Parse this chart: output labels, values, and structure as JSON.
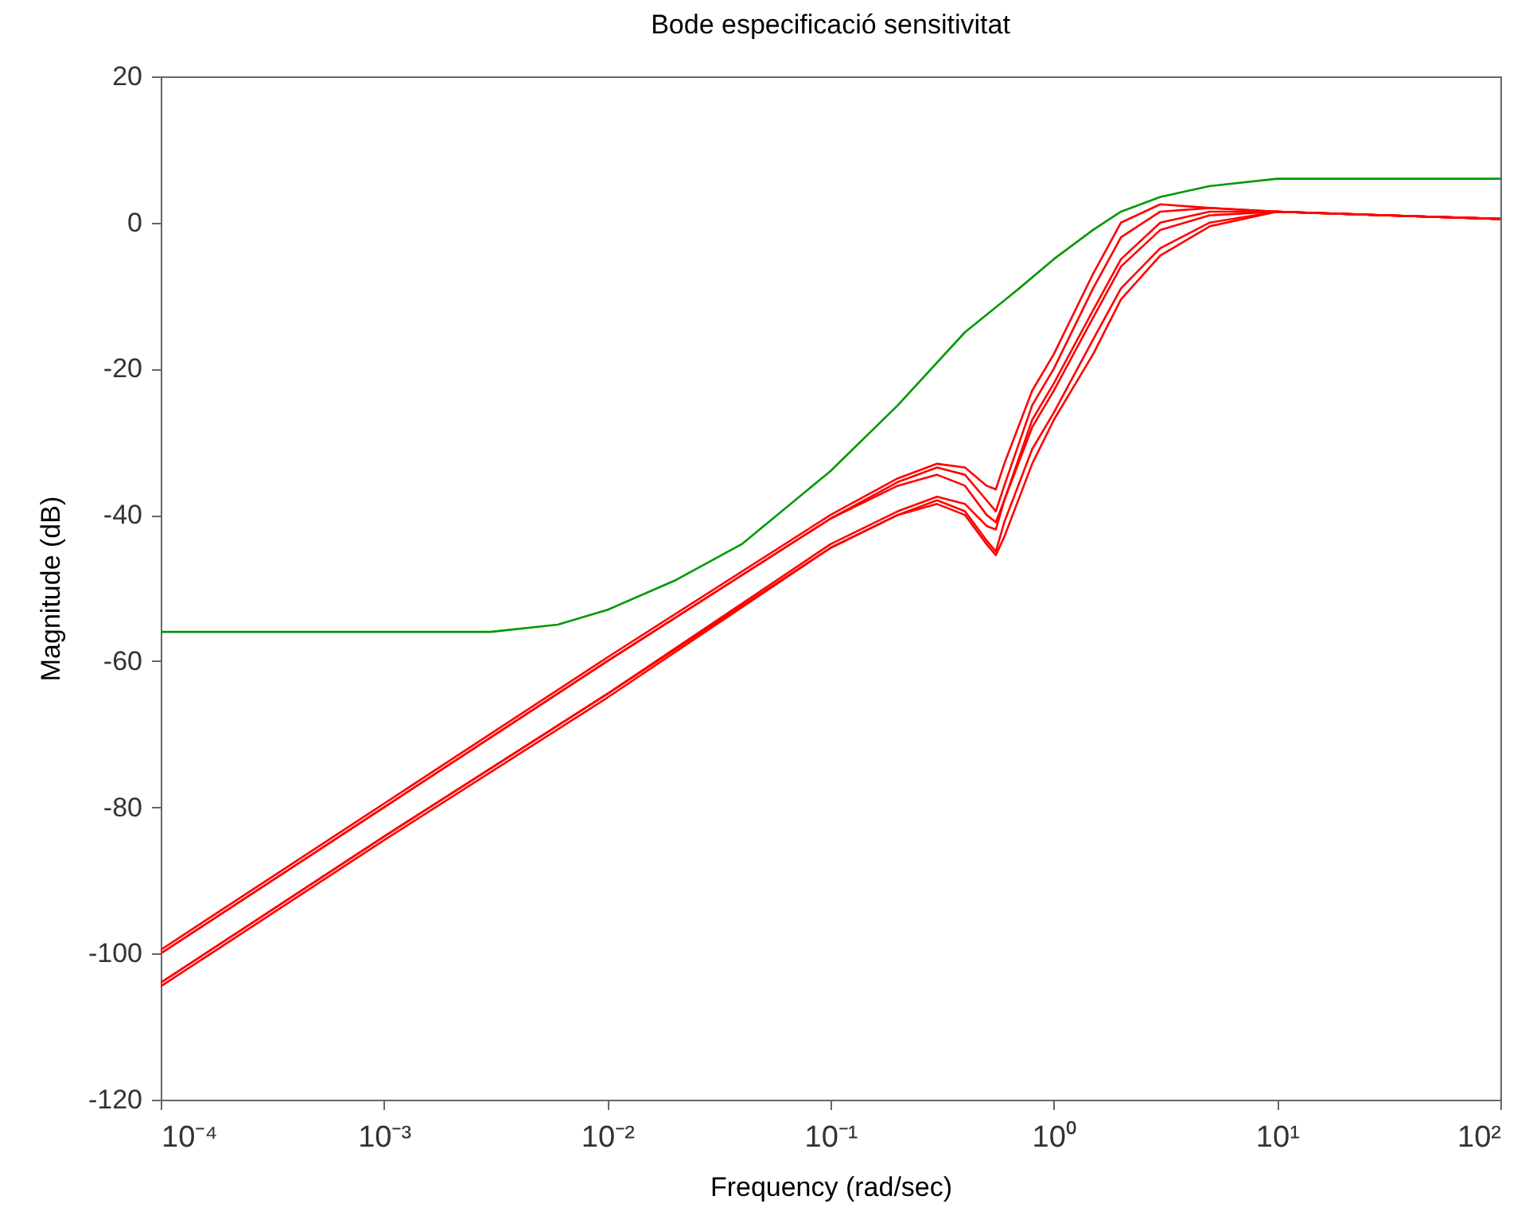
{
  "chart_data": {
    "type": "line",
    "title": "Bode especificació sensitivitat",
    "xlabel": "Frequency  (rad/sec)",
    "ylabel": "Magnitude (dB)",
    "log": "x",
    "grid": false,
    "legend": false,
    "marker": "none",
    "line_style": "solid",
    "xlim": [
      0.0001,
      100
    ],
    "ylim": [
      -120,
      20
    ],
    "xticks": [
      {
        "value": 0.0001,
        "label": "10⁻⁴"
      },
      {
        "value": 0.001,
        "label": "10⁻³"
      },
      {
        "value": 0.01,
        "label": "10⁻²"
      },
      {
        "value": 0.1,
        "label": "10⁻¹"
      },
      {
        "value": 1,
        "label": "10⁰"
      },
      {
        "value": 10,
        "label": "10¹"
      },
      {
        "value": 100,
        "label": "10²"
      }
    ],
    "yticks": [
      -120,
      -100,
      -80,
      -60,
      -40,
      -20,
      0,
      20
    ],
    "series": [
      {
        "color": "#009900",
        "x": [
          0.0001,
          0.001,
          0.003,
          0.006,
          0.01,
          0.02,
          0.04,
          0.1,
          0.2,
          0.4,
          0.7,
          1,
          1.5,
          2,
          3,
          5,
          10,
          30,
          100
        ],
        "values": [
          -56,
          -56,
          -56,
          -55,
          -53,
          -49,
          -44,
          -34,
          -25,
          -15,
          -9,
          -5,
          -1,
          1.5,
          3.5,
          5,
          6,
          6,
          6
        ]
      },
      {
        "color": "#ff0000",
        "x": [
          0.0001,
          0.001,
          0.01,
          0.1,
          0.2,
          0.3,
          0.4,
          0.5,
          0.55,
          0.6,
          0.8,
          1,
          1.5,
          2,
          3,
          5,
          10,
          30,
          100
        ],
        "values": [
          -99.5,
          -79.5,
          -59.5,
          -40,
          -35,
          -33,
          -33.5,
          -36,
          -36.5,
          -33,
          -23,
          -18,
          -7,
          0,
          2.5,
          2,
          1.5,
          1,
          0.5
        ]
      },
      {
        "color": "#ff0000",
        "x": [
          0.0001,
          0.001,
          0.01,
          0.1,
          0.2,
          0.3,
          0.4,
          0.5,
          0.55,
          0.6,
          0.8,
          1,
          1.5,
          2,
          3,
          5,
          10,
          30,
          100
        ],
        "values": [
          -100,
          -80,
          -60,
          -40.5,
          -35.5,
          -33.5,
          -34.5,
          -38,
          -39.5,
          -36,
          -25,
          -20,
          -9,
          -2,
          1.5,
          2,
          1.5,
          1,
          0.5
        ]
      },
      {
        "color": "#ff0000",
        "x": [
          0.0001,
          0.001,
          0.01,
          0.1,
          0.2,
          0.3,
          0.4,
          0.5,
          0.55,
          0.6,
          0.8,
          1,
          1.5,
          2,
          3,
          5,
          10,
          30,
          100
        ],
        "values": [
          -100,
          -80,
          -60,
          -40.5,
          -36,
          -34.5,
          -36,
          -40,
          -41,
          -38,
          -27,
          -22,
          -12,
          -5,
          0,
          1.5,
          1.5,
          1,
          0.5
        ]
      },
      {
        "color": "#ff0000",
        "x": [
          0.0001,
          0.001,
          0.01,
          0.1,
          0.2,
          0.3,
          0.4,
          0.5,
          0.55,
          0.6,
          0.8,
          1,
          1.5,
          2,
          3,
          5,
          10,
          30,
          100
        ],
        "values": [
          -104,
          -84,
          -64.5,
          -44,
          -39.5,
          -37.5,
          -38.5,
          -41.5,
          -42,
          -38,
          -28,
          -23,
          -13,
          -6,
          -1,
          1,
          1.5,
          1,
          0.5
        ]
      },
      {
        "color": "#ff0000",
        "x": [
          0.0001,
          0.001,
          0.01,
          0.1,
          0.2,
          0.3,
          0.4,
          0.5,
          0.55,
          0.6,
          0.8,
          1,
          1.5,
          2,
          3,
          5,
          10,
          30,
          100
        ],
        "values": [
          -104,
          -84,
          -64.5,
          -44.5,
          -40,
          -38,
          -39.5,
          -43.5,
          -45,
          -41,
          -31,
          -26,
          -16,
          -9,
          -3.5,
          0,
          1.5,
          1,
          0.5
        ]
      },
      {
        "color": "#ff0000",
        "x": [
          0.0001,
          0.001,
          0.01,
          0.1,
          0.2,
          0.3,
          0.4,
          0.5,
          0.55,
          0.6,
          0.8,
          1,
          1.5,
          2,
          3,
          5,
          10,
          30,
          100
        ],
        "values": [
          -104.5,
          -84.5,
          -65,
          -44.5,
          -40,
          -38.5,
          -40,
          -44,
          -45.5,
          -43,
          -33,
          -27,
          -18,
          -10.5,
          -4.5,
          -0.5,
          1.5,
          1,
          0.5
        ]
      }
    ]
  }
}
